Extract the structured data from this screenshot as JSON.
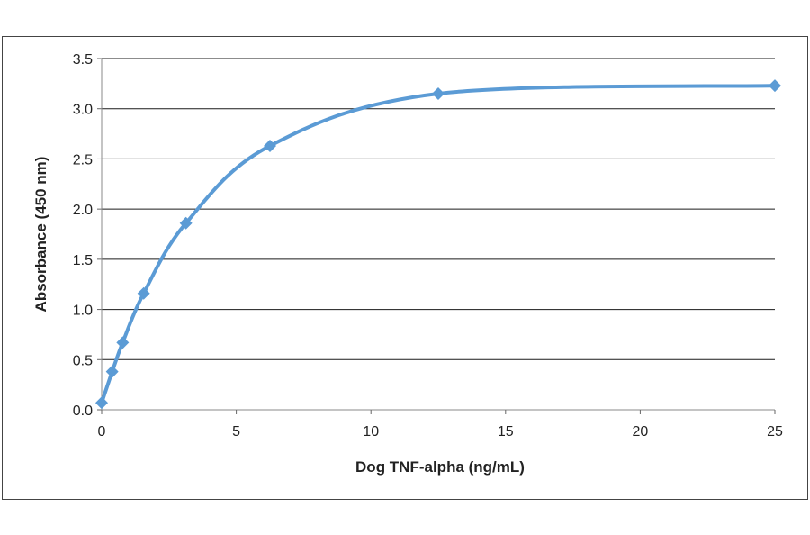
{
  "chart_data": {
    "type": "line",
    "title": "",
    "xlabel": "Dog TNF-alpha (ng/mL)",
    "ylabel": "Absorbance  (450 nm)",
    "xlim": [
      0,
      25
    ],
    "ylim": [
      0,
      3.5
    ],
    "x_ticks": [
      "0",
      "5",
      "10",
      "15",
      "20",
      "25"
    ],
    "y_ticks": [
      "0.0",
      "0.5",
      "1.0",
      "1.5",
      "2.0",
      "2.5",
      "3.0",
      "3.5"
    ],
    "grid": "horizontal",
    "legend": "none",
    "series_color": "#5b9bd5",
    "marker": "diamond",
    "smooth": true,
    "series": [
      {
        "x": [
          0,
          0.39,
          0.78,
          1.56,
          3.13,
          6.25,
          12.5,
          25
        ],
        "y": [
          0.07,
          0.38,
          0.67,
          1.16,
          1.86,
          2.63,
          3.15,
          3.23
        ]
      }
    ]
  }
}
